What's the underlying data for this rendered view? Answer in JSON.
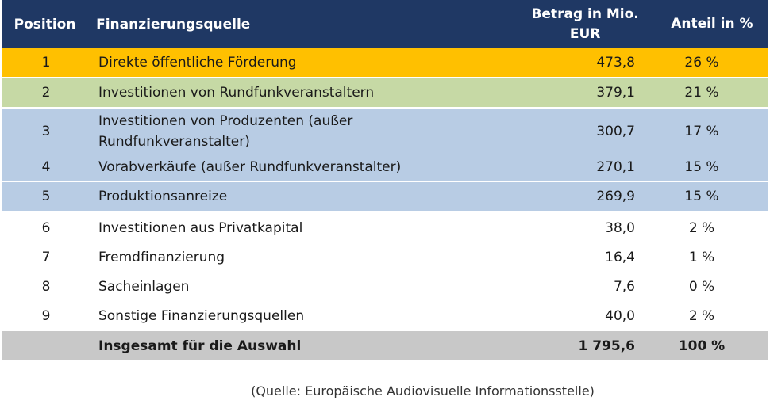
{
  "header": {
    "position": "Position",
    "source": "Finanzierungsquelle",
    "amount": "Betrag in Mio. EUR",
    "share": "Anteil in %"
  },
  "rows": [
    {
      "position": "1",
      "source": "Direkte öffentliche Förderung",
      "amount": "473,8",
      "share": "26 %"
    },
    {
      "position": "2",
      "source": "Investitionen von Rundfunkveranstaltern",
      "amount": "379,1",
      "share": "21 %"
    },
    {
      "position": "3",
      "source": "Investitionen von Produzenten (außer Rundfunkveranstalter)",
      "amount": "300,7",
      "share": "17 %"
    },
    {
      "position": "4",
      "source": "Vorabverkäufe (außer Rundfunkveranstalter)",
      "amount": "270,1",
      "share": "15 %"
    },
    {
      "position": "5",
      "source": "Produktionsanreize",
      "amount": "269,9",
      "share": "15 %"
    },
    {
      "position": "6",
      "source": "Investitionen aus Privatkapital",
      "amount": "38,0",
      "share": "2 %"
    },
    {
      "position": "7",
      "source": "Fremdfinanzierung",
      "amount": "16,4",
      "share": "1 %"
    },
    {
      "position": "8",
      "source": "Sacheinlagen",
      "amount": "7,6",
      "share": "0 %"
    },
    {
      "position": "9",
      "source": "Sonstige Finanzierungsquellen",
      "amount": "40,0",
      "share": "2 %"
    }
  ],
  "total": {
    "label": "Insgesamt für die Auswahl",
    "amount": "1 795,6",
    "share": "100 %"
  },
  "footnote": "(Quelle: Europäische Audiovisuelle Informationsstelle)",
  "colors": {
    "header": "#1f3864",
    "row1": "#ffc000",
    "row2": "#c6d9a5",
    "rows3to5": "#b8cce4",
    "total": "#c8c8c8"
  }
}
